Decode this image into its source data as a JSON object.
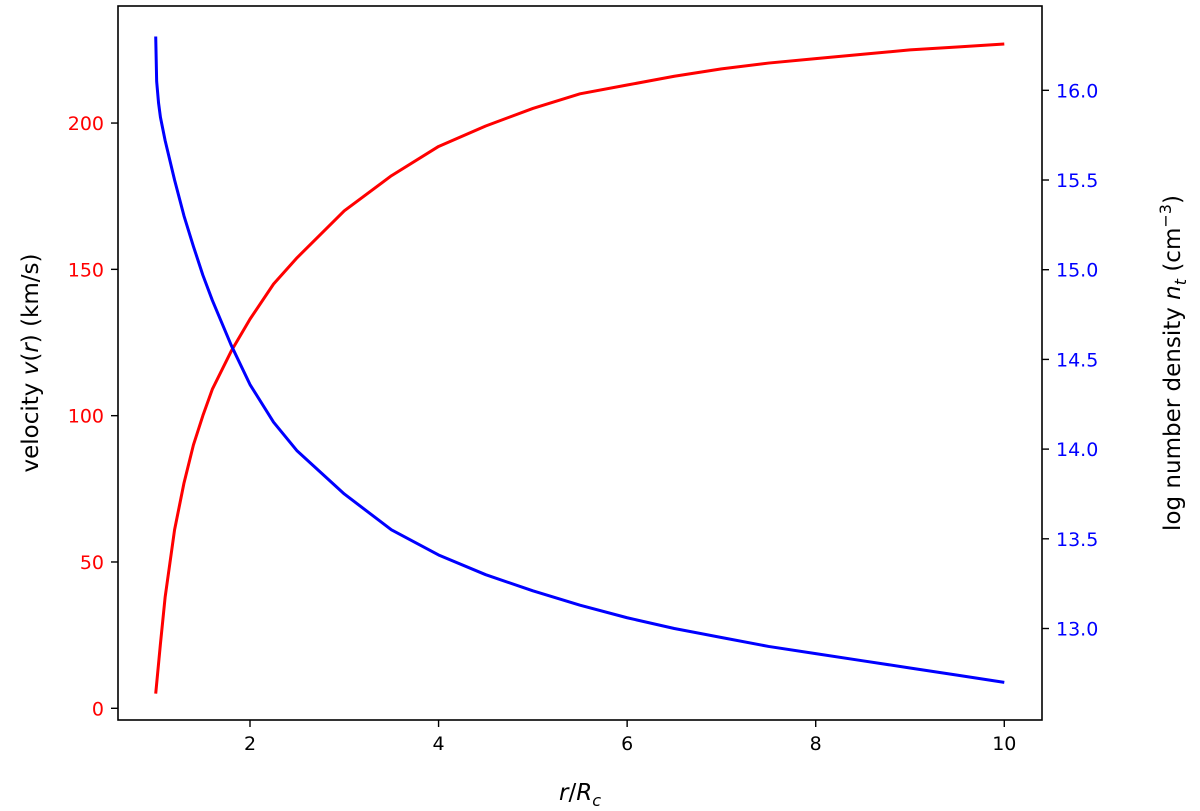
{
  "chart_data": {
    "type": "line",
    "xlabel": "r/R_c",
    "ylabel_left": "velocity v(r) (km/s)",
    "ylabel_right": "log number density n_t (cm^-3)",
    "xlim": [
      0.6,
      10.4
    ],
    "ylim_left": [
      -4,
      240
    ],
    "ylim_right": [
      12.49,
      16.47
    ],
    "x_ticks": [
      2,
      4,
      6,
      8,
      10
    ],
    "y_left_ticks": [
      0,
      50,
      100,
      150,
      200
    ],
    "y_right_ticks": [
      13.0,
      13.5,
      14.0,
      14.5,
      15.0,
      15.5,
      16.0
    ],
    "grid": false,
    "colors": {
      "left_axis": "#ff0000",
      "right_axis": "#0000ff"
    },
    "series": [
      {
        "axis": "left",
        "color": "#ff0000",
        "x": [
          1.0,
          1.05,
          1.1,
          1.2,
          1.3,
          1.4,
          1.5,
          1.6,
          1.8,
          2.0,
          2.25,
          2.5,
          3.0,
          3.5,
          4.0,
          4.5,
          5.0,
          5.5,
          6.0,
          6.5,
          7.0,
          7.5,
          8.0,
          8.5,
          9.0,
          9.5,
          10.0
        ],
        "values": [
          5,
          22,
          38,
          61,
          77,
          90,
          100,
          109,
          122,
          133,
          145,
          154,
          170,
          182,
          192,
          199,
          205,
          210,
          213,
          216,
          218.5,
          220.5,
          222,
          223.5,
          225,
          226,
          227
        ]
      },
      {
        "axis": "right",
        "color": "#0000ff",
        "x": [
          1.0,
          1.01,
          1.03,
          1.05,
          1.1,
          1.2,
          1.3,
          1.4,
          1.5,
          1.6,
          1.8,
          2.0,
          2.25,
          2.5,
          3.0,
          3.5,
          4.0,
          4.5,
          5.0,
          5.5,
          6.0,
          6.5,
          7.0,
          7.5,
          8.0,
          8.5,
          9.0,
          9.5,
          10.0
        ],
        "values": [
          16.3,
          16.05,
          15.93,
          15.85,
          15.72,
          15.5,
          15.3,
          15.13,
          14.97,
          14.83,
          14.58,
          14.36,
          14.15,
          13.99,
          13.75,
          13.55,
          13.41,
          13.3,
          13.21,
          13.13,
          13.06,
          13.0,
          12.95,
          12.9,
          12.86,
          12.82,
          12.78,
          12.74,
          12.7
        ]
      }
    ]
  }
}
